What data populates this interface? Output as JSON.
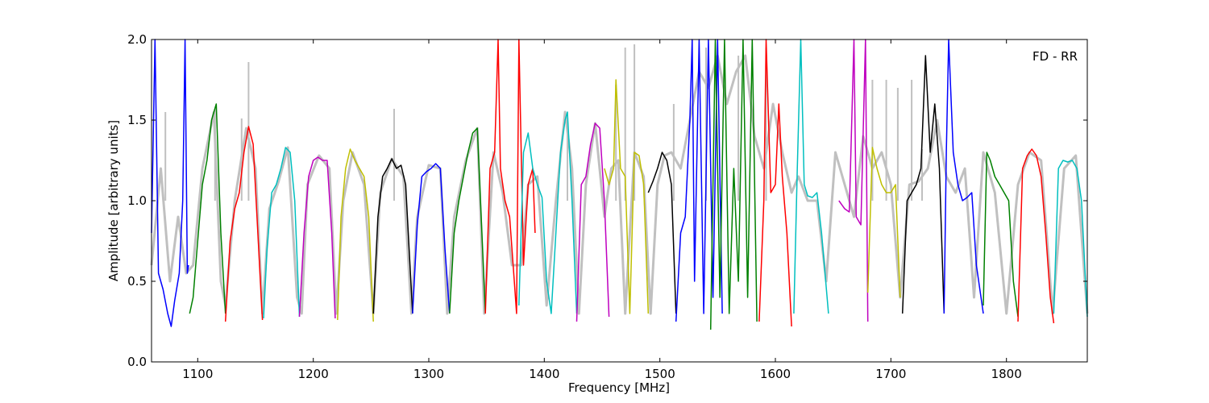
{
  "chart_data": {
    "type": "line",
    "xlabel": "Frequency [MHz]",
    "ylabel": "Amplitude [arbitrary units]",
    "annotation": "FD - RR",
    "annotation_position": "top-right",
    "xlim": [
      1060,
      1870
    ],
    "ylim": [
      0.0,
      2.0
    ],
    "xticks": [
      1100,
      1200,
      1300,
      1400,
      1500,
      1600,
      1700,
      1800
    ],
    "xtick_labels": [
      "1100",
      "1200",
      "1300",
      "1400",
      "1500",
      "1600",
      "1700",
      "1800"
    ],
    "yticks": [
      0.0,
      0.5,
      1.0,
      1.5,
      2.0
    ],
    "ytick_labels": [
      "0.0",
      "0.5",
      "1.0",
      "1.5",
      "2.0"
    ],
    "grid": false,
    "background_series": {
      "color": "#c0c0c0",
      "x": [
        1060,
        1068,
        1076,
        1083,
        1090,
        1096,
        1104,
        1114,
        1120,
        1124,
        1132,
        1142,
        1150,
        1156,
        1162,
        1170,
        1178,
        1186,
        1190,
        1195,
        1205,
        1214,
        1220,
        1226,
        1234,
        1244,
        1252,
        1258,
        1268,
        1278,
        1285,
        1290,
        1300,
        1310,
        1316,
        1322,
        1332,
        1342,
        1348,
        1356,
        1364,
        1372,
        1380,
        1386,
        1394,
        1402,
        1410,
        1418,
        1424,
        1430,
        1436,
        1444,
        1452,
        1458,
        1464,
        1470,
        1478,
        1486,
        1492,
        1498,
        1504,
        1510,
        1518,
        1526,
        1534,
        1542,
        1550,
        1558,
        1566,
        1574,
        1582,
        1590,
        1598,
        1606,
        1614,
        1620,
        1628,
        1636,
        1644,
        1652,
        1660,
        1668,
        1676,
        1684,
        1692,
        1700,
        1708,
        1716,
        1724,
        1732,
        1740,
        1748,
        1756,
        1764,
        1772,
        1780,
        1790,
        1800,
        1810,
        1820,
        1830,
        1840,
        1850,
        1860,
        1870
      ],
      "y": [
        0.6,
        1.2,
        0.5,
        0.9,
        0.55,
        0.6,
        1.2,
        1.55,
        0.5,
        0.35,
        1.0,
        1.45,
        1.2,
        0.3,
        0.95,
        1.12,
        1.33,
        0.4,
        0.3,
        1.1,
        1.28,
        1.2,
        0.3,
        1.0,
        1.3,
        1.1,
        0.3,
        1.05,
        1.26,
        1.15,
        0.3,
        0.9,
        1.22,
        1.2,
        0.3,
        0.9,
        1.25,
        1.45,
        0.3,
        1.3,
        1.05,
        0.6,
        0.6,
        1.1,
        1.15,
        0.35,
        1.0,
        1.55,
        1.2,
        0.3,
        1.1,
        1.48,
        0.9,
        1.2,
        1.25,
        0.3,
        1.3,
        1.15,
        0.3,
        1.1,
        1.28,
        1.3,
        1.2,
        1.5,
        1.8,
        1.7,
        1.9,
        1.6,
        1.8,
        1.9,
        1.4,
        1.2,
        1.6,
        1.3,
        1.05,
        1.15,
        1.0,
        1.0,
        0.5,
        1.3,
        1.1,
        0.9,
        1.4,
        1.2,
        1.3,
        1.1,
        0.4,
        1.1,
        1.12,
        1.2,
        1.5,
        1.15,
        1.05,
        1.2,
        0.4,
        1.3,
        1.05,
        0.3,
        1.1,
        1.3,
        1.25,
        0.3,
        1.2,
        1.28,
        0.3
      ],
      "spikes": [
        [
          1072,
          1.55
        ],
        [
          1115,
          1.57
        ],
        [
          1138,
          1.51
        ],
        [
          1144,
          1.86
        ],
        [
          1270,
          1.57
        ],
        [
          1420,
          1.5
        ],
        [
          1462,
          1.72
        ],
        [
          1470,
          1.95
        ],
        [
          1478,
          1.97
        ],
        [
          1512,
          1.6
        ],
        [
          1540,
          1.95
        ],
        [
          1568,
          1.9
        ],
        [
          1592,
          1.95
        ],
        [
          1684,
          1.75
        ],
        [
          1696,
          1.75
        ],
        [
          1706,
          1.7
        ],
        [
          1718,
          1.75
        ],
        [
          1727,
          1.32
        ]
      ]
    },
    "series": [
      {
        "color": "#0000ff",
        "x": [
          1060,
          1063,
          1066,
          1070,
          1074,
          1077,
          1080,
          1084,
          1087,
          1089,
          1091,
          1092
        ],
        "y": [
          0.8,
          2.0,
          0.55,
          0.45,
          0.3,
          0.22,
          0.38,
          0.55,
          1.0,
          2.0,
          0.55,
          0.6
        ]
      },
      {
        "color": "#008000",
        "x": [
          1093,
          1096,
          1100,
          1104,
          1108,
          1112,
          1116,
          1120,
          1124
        ],
        "y": [
          0.3,
          0.4,
          0.75,
          1.1,
          1.25,
          1.5,
          1.6,
          0.8,
          0.3
        ]
      },
      {
        "color": "#ff0000",
        "x": [
          1124,
          1128,
          1132,
          1136,
          1140,
          1144,
          1148,
          1152,
          1156
        ],
        "y": [
          0.25,
          0.75,
          0.95,
          1.05,
          1.3,
          1.46,
          1.35,
          0.8,
          0.26
        ]
      },
      {
        "color": "#00bfbf",
        "x": [
          1157,
          1160,
          1164,
          1168,
          1172,
          1176,
          1180,
          1184,
          1188
        ],
        "y": [
          0.27,
          0.7,
          1.05,
          1.1,
          1.2,
          1.33,
          1.3,
          1.0,
          0.28
        ]
      },
      {
        "color": "#bf00bf",
        "x": [
          1188,
          1192,
          1196,
          1200,
          1204,
          1208,
          1212,
          1216,
          1219
        ],
        "y": [
          0.28,
          0.8,
          1.15,
          1.25,
          1.27,
          1.25,
          1.25,
          0.8,
          0.27
        ]
      },
      {
        "color": "#bfbf00",
        "x": [
          1221,
          1224,
          1228,
          1232,
          1236,
          1240,
          1244,
          1248,
          1252
        ],
        "y": [
          0.26,
          0.9,
          1.2,
          1.32,
          1.25,
          1.2,
          1.15,
          0.9,
          0.25
        ]
      },
      {
        "color": "#000000",
        "x": [
          1252,
          1256,
          1260,
          1264,
          1268,
          1272,
          1276,
          1280,
          1286
        ],
        "y": [
          0.3,
          0.9,
          1.15,
          1.2,
          1.26,
          1.2,
          1.22,
          1.1,
          0.3
        ]
      },
      {
        "color": "#0000ff",
        "x": [
          1286,
          1290,
          1294,
          1298,
          1302,
          1306,
          1310,
          1314,
          1318
        ],
        "y": [
          0.3,
          0.85,
          1.15,
          1.18,
          1.2,
          1.23,
          1.2,
          0.7,
          0.3
        ]
      },
      {
        "color": "#008000",
        "x": [
          1318,
          1322,
          1326,
          1330,
          1334,
          1338,
          1342,
          1346,
          1349
        ],
        "y": [
          0.3,
          0.8,
          1.0,
          1.15,
          1.3,
          1.42,
          1.45,
          0.8,
          0.3
        ]
      },
      {
        "color": "#ff0000",
        "x": [
          1349,
          1353,
          1357,
          1360,
          1362,
          1366,
          1370,
          1374,
          1376,
          1378,
          1382,
          1386,
          1390,
          1392
        ],
        "y": [
          0.3,
          1.2,
          1.3,
          2.0,
          1.2,
          1.0,
          0.9,
          0.5,
          0.3,
          2.0,
          0.6,
          1.1,
          1.2,
          0.8
        ]
      },
      {
        "color": "#00bfbf",
        "x": [
          1378,
          1382,
          1386,
          1390,
          1394,
          1398,
          1402,
          1406,
          1410,
          1414,
          1418,
          1420,
          1424,
          1428
        ],
        "y": [
          0.35,
          1.3,
          1.42,
          1.2,
          1.1,
          1.02,
          0.5,
          0.3,
          0.8,
          1.3,
          1.5,
          1.55,
          1.0,
          0.3
        ]
      },
      {
        "color": "#bf00bf",
        "x": [
          1428,
          1432,
          1436,
          1440,
          1444,
          1448,
          1452,
          1456
        ],
        "y": [
          0.25,
          1.1,
          1.15,
          1.35,
          1.48,
          1.45,
          1.0,
          0.28
        ]
      },
      {
        "color": "#bfbf00",
        "x": [
          1452,
          1456,
          1460,
          1462,
          1466,
          1470,
          1474,
          1478,
          1482,
          1486,
          1490
        ],
        "y": [
          1.2,
          1.1,
          1.2,
          1.75,
          1.2,
          1.15,
          0.3,
          1.3,
          1.28,
          1.1,
          0.3
        ]
      },
      {
        "color": "#000000",
        "x": [
          1490,
          1494,
          1498,
          1502,
          1506,
          1510,
          1514
        ],
        "y": [
          1.05,
          1.12,
          1.2,
          1.3,
          1.25,
          1.1,
          0.3
        ]
      },
      {
        "color": "#0000ff",
        "x": [
          1514,
          1518,
          1522,
          1526,
          1528,
          1530,
          1534,
          1538,
          1542,
          1546,
          1550,
          1554
        ],
        "y": [
          0.25,
          0.8,
          0.9,
          1.5,
          2.0,
          0.5,
          2.0,
          0.3,
          2.0,
          0.4,
          2.0,
          0.3
        ]
      },
      {
        "color": "#008000",
        "x": [
          1544,
          1548,
          1552,
          1556,
          1560,
          1564,
          1568,
          1572,
          1576,
          1580,
          1584
        ],
        "y": [
          0.2,
          2.0,
          0.4,
          2.0,
          0.3,
          1.2,
          0.5,
          2.0,
          0.4,
          2.0,
          0.25
        ]
      },
      {
        "color": "#ff0000",
        "x": [
          1586,
          1590,
          1592,
          1596,
          1600,
          1603,
          1606,
          1610,
          1614
        ],
        "y": [
          0.25,
          1.0,
          2.0,
          1.05,
          1.1,
          1.6,
          1.15,
          0.8,
          0.22
        ]
      },
      {
        "color": "#00bfbf",
        "x": [
          1616,
          1619,
          1622,
          1625,
          1628,
          1632,
          1636,
          1640,
          1646
        ],
        "y": [
          0.3,
          1.2,
          2.0,
          1.1,
          1.03,
          1.02,
          1.05,
          0.8,
          0.3
        ]
      },
      {
        "color": "#bf00bf",
        "x": [
          1655,
          1660,
          1664,
          1668,
          1670,
          1674,
          1678,
          1680
        ],
        "y": [
          1.0,
          0.95,
          0.93,
          2.0,
          0.9,
          0.85,
          2.0,
          0.25
        ]
      },
      {
        "color": "#bfbf00",
        "x": [
          1680,
          1684,
          1688,
          1692,
          1696,
          1700,
          1704,
          1708
        ],
        "y": [
          0.43,
          1.33,
          1.2,
          1.1,
          1.05,
          1.05,
          1.1,
          0.4
        ]
      },
      {
        "color": "#000000",
        "x": [
          1710,
          1714,
          1718,
          1722,
          1726,
          1730,
          1734,
          1738,
          1742,
          1746
        ],
        "y": [
          0.3,
          1.0,
          1.05,
          1.1,
          1.2,
          1.9,
          1.3,
          1.6,
          1.2,
          0.3
        ]
      },
      {
        "color": "#0000ff",
        "x": [
          1746,
          1748,
          1750,
          1754,
          1758,
          1762,
          1766,
          1770,
          1774,
          1780
        ],
        "y": [
          0.3,
          1.3,
          2.0,
          1.3,
          1.1,
          1.0,
          1.02,
          1.05,
          0.6,
          0.3
        ]
      },
      {
        "color": "#008000",
        "x": [
          1780,
          1783,
          1786,
          1790,
          1794,
          1798,
          1802,
          1806,
          1810
        ],
        "y": [
          0.35,
          1.3,
          1.25,
          1.15,
          1.1,
          1.05,
          1.0,
          0.5,
          0.28
        ]
      },
      {
        "color": "#ff0000",
        "x": [
          1810,
          1814,
          1818,
          1822,
          1826,
          1830,
          1834,
          1838,
          1841
        ],
        "y": [
          0.25,
          1.2,
          1.28,
          1.32,
          1.28,
          1.15,
          0.8,
          0.4,
          0.24
        ]
      },
      {
        "color": "#00bfbf",
        "x": [
          1841,
          1845,
          1849,
          1853,
          1857,
          1861,
          1865,
          1870
        ],
        "y": [
          0.3,
          1.2,
          1.25,
          1.24,
          1.25,
          1.2,
          1.0,
          0.28
        ]
      }
    ]
  }
}
